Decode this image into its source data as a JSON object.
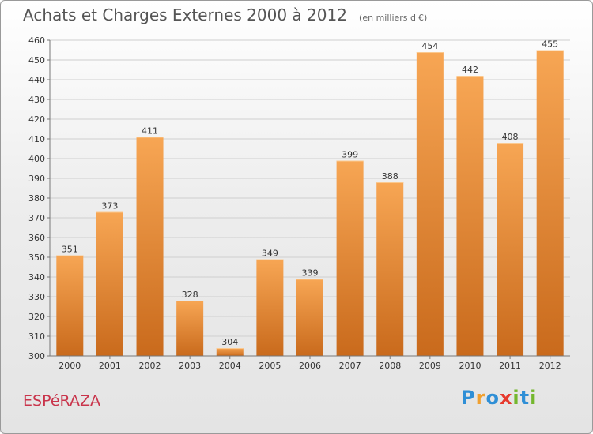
{
  "title": "Achats et Charges Externes 2000 à 2012",
  "subtitle": "(en milliers d'€)",
  "commune": "ESPéRAZA",
  "logo": {
    "text": "Proxiti",
    "letters": [
      {
        "char": "P",
        "color": "#2f8fd6"
      },
      {
        "char": "r",
        "color": "#f0a030"
      },
      {
        "char": "o",
        "color": "#2f8fd6"
      },
      {
        "char": "x",
        "color": "#e63a2e"
      },
      {
        "char": "i",
        "color": "#74b72e"
      },
      {
        "char": "t",
        "color": "#2f8fd6"
      },
      {
        "char": "i",
        "color": "#74b72e"
      }
    ]
  },
  "chart_data": {
    "type": "bar",
    "categories": [
      "2000",
      "2001",
      "2002",
      "2003",
      "2004",
      "2005",
      "2006",
      "2007",
      "2008",
      "2009",
      "2010",
      "2011",
      "2012"
    ],
    "values": [
      351,
      373,
      411,
      328,
      304,
      349,
      339,
      399,
      388,
      454,
      442,
      408,
      455
    ],
    "ylim": [
      300,
      460
    ],
    "yticks": [
      300,
      310,
      320,
      330,
      340,
      350,
      360,
      370,
      380,
      390,
      400,
      410,
      420,
      430,
      440,
      450,
      460
    ],
    "grid": true,
    "bar_color_top": "#f7a654",
    "bar_color_bottom": "#c96a1c"
  }
}
